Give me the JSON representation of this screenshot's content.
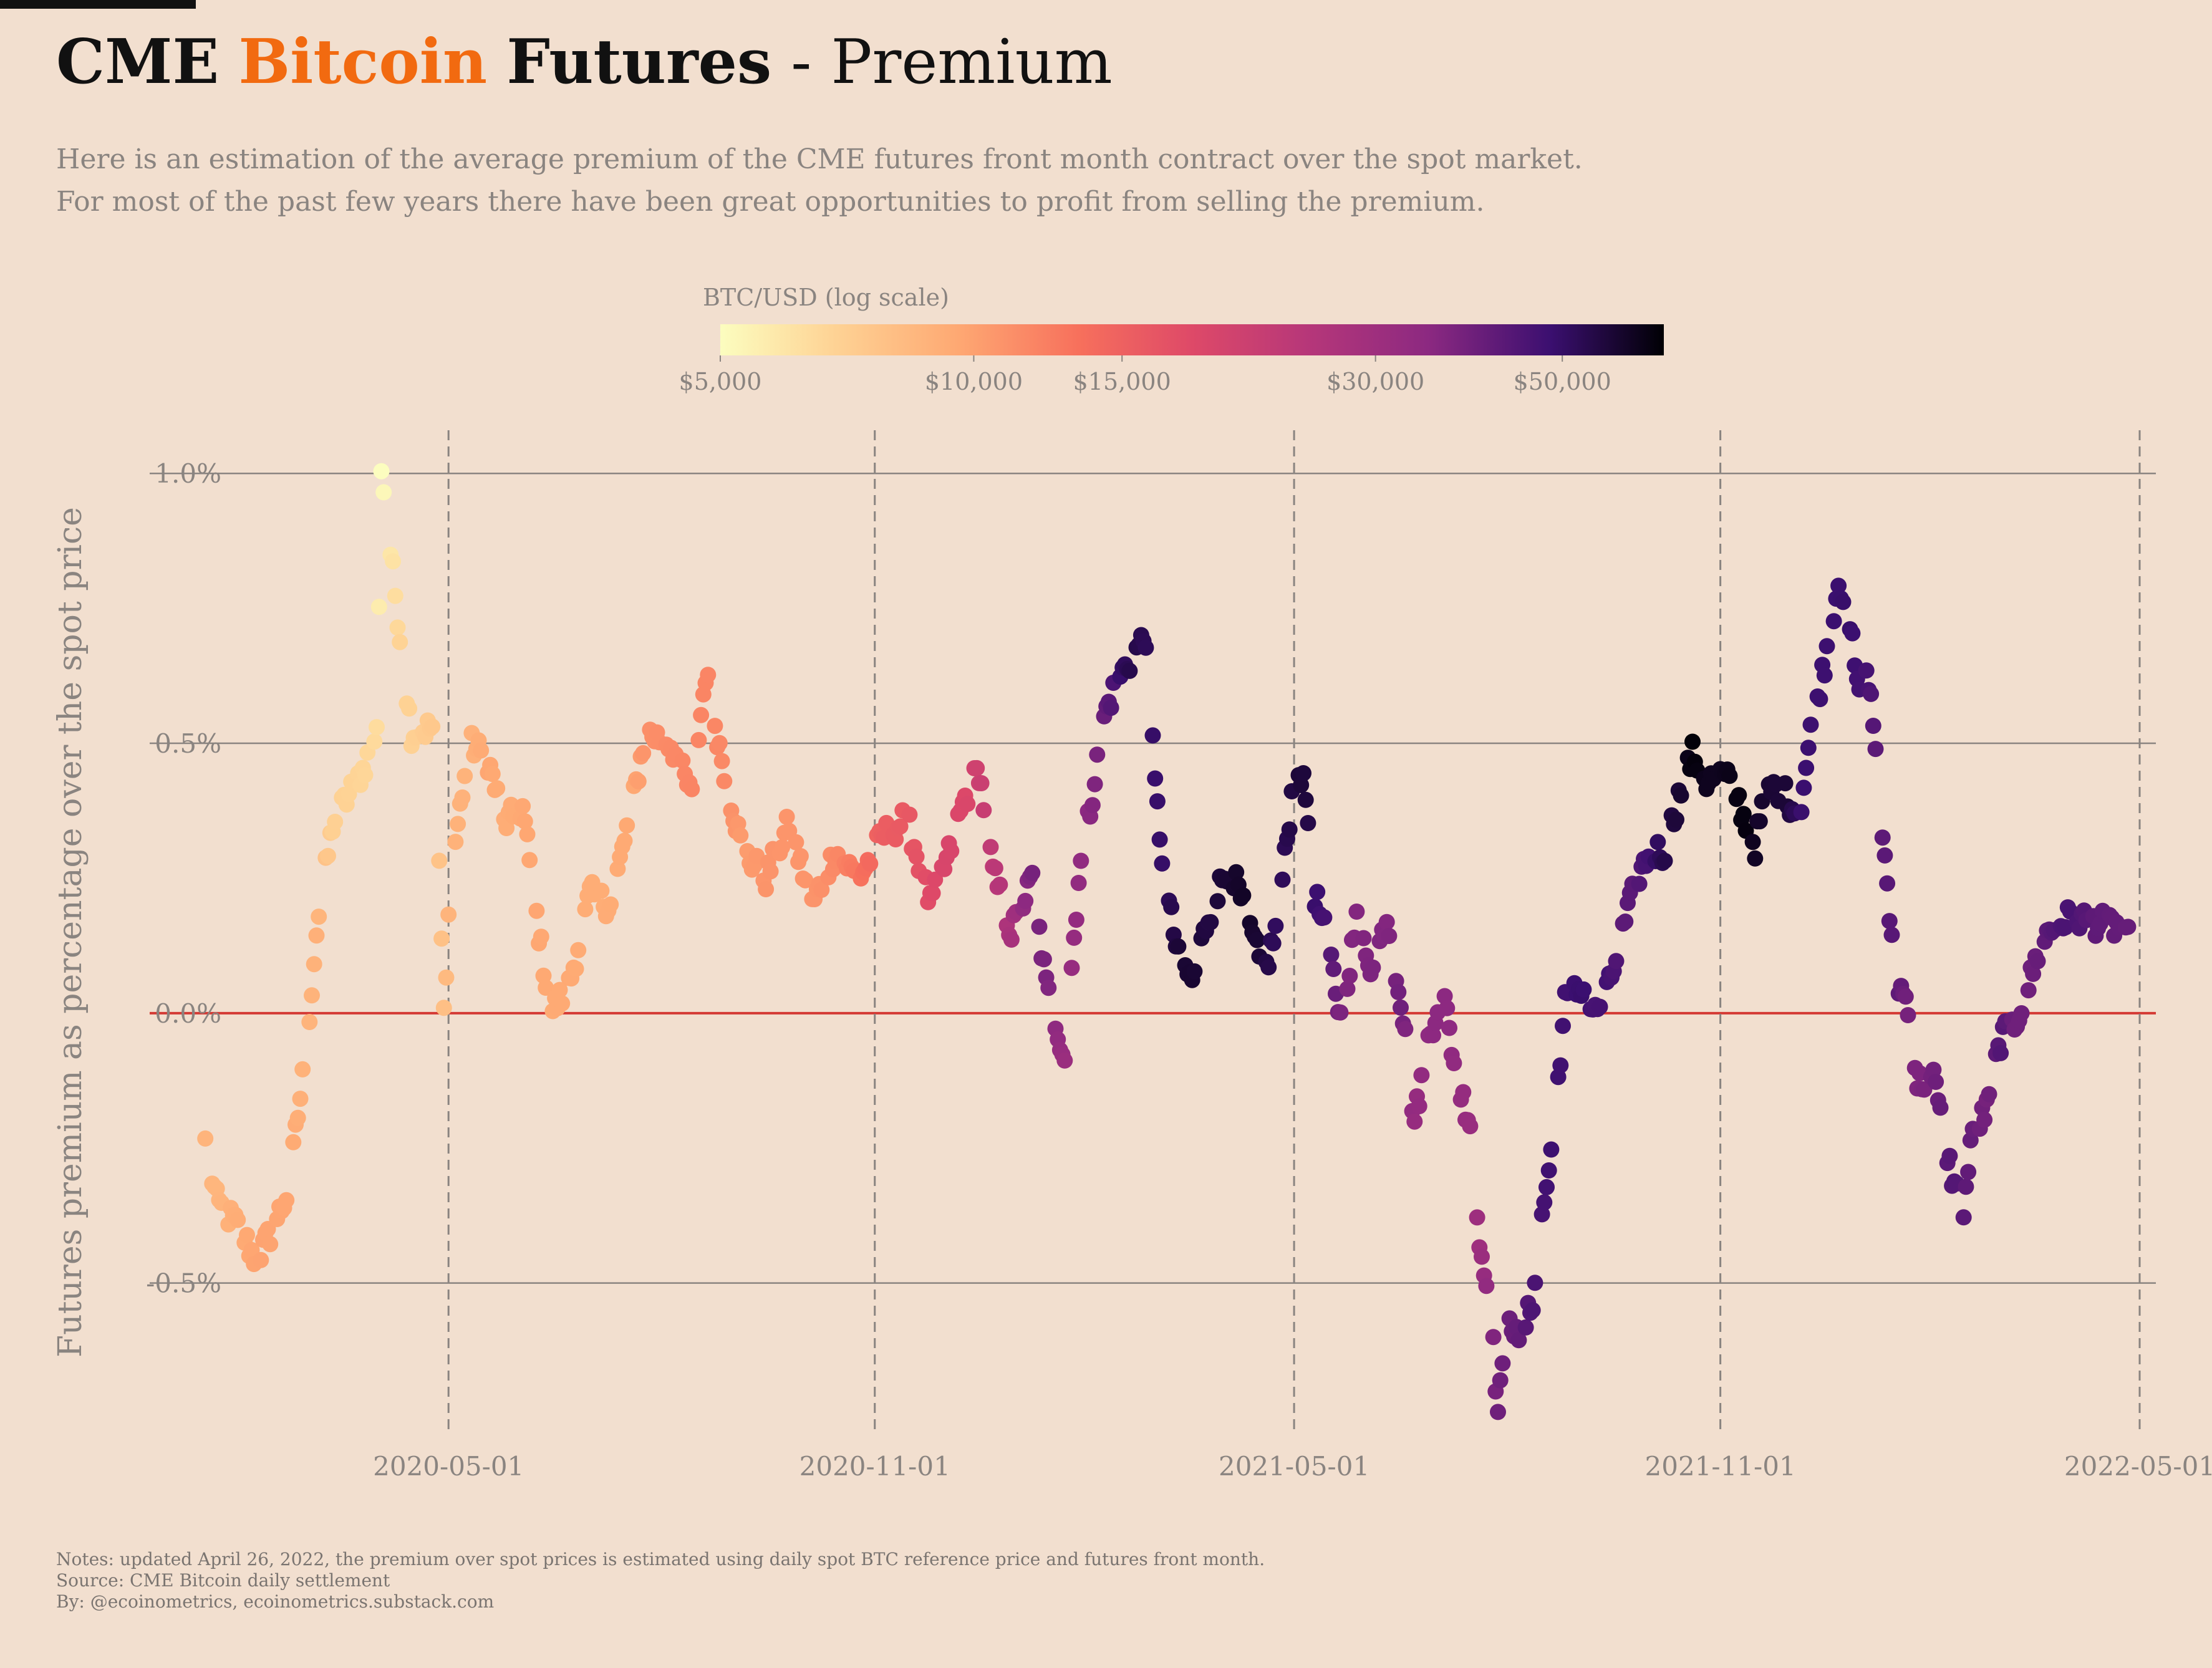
{
  "title": {
    "part1": "CME",
    "part2": "Bitcoin",
    "part3": "Futures",
    "part4": "- Premium"
  },
  "subtitle": {
    "line1": "Here is an estimation of the average premium of the CME futures front month contract over the spot market.",
    "line2": "For most of the past few years there have been great opportunities to profit from selling the premium."
  },
  "notes": {
    "line1": "Notes: updated April 26, 2022, the premium over spot prices is estimated using daily spot BTC reference price and futures front month.",
    "line2": "Source: CME Bitcoin daily settlement",
    "line3": "By: @ecoinometrics, ecoinometrics.substack.com"
  },
  "colors": {
    "background": "#f2dfcf",
    "brand_orange": "#f26a10",
    "zero_line": "#d43a34",
    "grid": "#8a8480"
  },
  "chart_data": {
    "type": "scatter",
    "ylabel": "Futures premium as percentage over the spot price",
    "y_unit": "percent",
    "ylim": [
      -0.78,
      1.08
    ],
    "yticks": [
      1.0,
      0.5,
      0.0,
      -0.5
    ],
    "ytick_labels": [
      "1.0%",
      "0.5%",
      "0.0%",
      "-0.5%"
    ],
    "xlim": [
      "2019-12-24",
      "2022-05-08"
    ],
    "xticks": [
      "2020-05-01",
      "2020-11-01",
      "2021-05-01",
      "2021-11-01",
      "2022-05-01"
    ],
    "colorbar": {
      "label": "BTC/USD (log scale)",
      "min": 5000,
      "max": 66000,
      "ticks": [
        5000,
        10000,
        15000,
        30000,
        50000
      ],
      "tick_labels": [
        "$5,000",
        "$10,000",
        "$15,000",
        "$30,000",
        "$50,000"
      ],
      "colormap": "magma (reversed)"
    },
    "anchors": [
      {
        "date": "2020-01-17",
        "premium": -0.24,
        "btc": 8700
      },
      {
        "date": "2020-01-22",
        "premium": -0.35,
        "btc": 8600
      },
      {
        "date": "2020-02-01",
        "premium": -0.4,
        "btc": 9300
      },
      {
        "date": "2020-02-08",
        "premium": -0.46,
        "btc": 9900
      },
      {
        "date": "2020-02-15",
        "premium": -0.4,
        "btc": 9800
      },
      {
        "date": "2020-02-22",
        "premium": -0.33,
        "btc": 9700
      },
      {
        "date": "2020-03-01",
        "premium": -0.05,
        "btc": 8600
      },
      {
        "date": "2020-03-05",
        "premium": 0.15,
        "btc": 9000
      },
      {
        "date": "2020-03-12",
        "premium": 0.35,
        "btc": 7000
      },
      {
        "date": "2020-03-25",
        "premium": 0.45,
        "btc": 6700
      },
      {
        "date": "2020-03-31",
        "premium": 0.52,
        "btc": 6400
      },
      {
        "date": "2020-04-02",
        "premium": 1.01,
        "btc": 5000
      },
      {
        "date": "2020-04-04",
        "premium": 0.93,
        "btc": 5500
      },
      {
        "date": "2020-04-10",
        "premium": 0.7,
        "btc": 6800
      },
      {
        "date": "2020-04-15",
        "premium": 0.52,
        "btc": 6900
      },
      {
        "date": "2020-04-25",
        "premium": 0.53,
        "btc": 7500
      },
      {
        "date": "2020-04-29",
        "premium": 0.0,
        "btc": 8000
      },
      {
        "date": "2020-05-01",
        "premium": 0.18,
        "btc": 8700
      },
      {
        "date": "2020-05-04",
        "premium": 0.32,
        "btc": 8900
      },
      {
        "date": "2020-05-10",
        "premium": 0.5,
        "btc": 8800
      },
      {
        "date": "2020-05-18",
        "premium": 0.47,
        "btc": 9700
      },
      {
        "date": "2020-05-25",
        "premium": 0.35,
        "btc": 9200
      },
      {
        "date": "2020-06-02",
        "premium": 0.38,
        "btc": 9600
      },
      {
        "date": "2020-06-08",
        "premium": 0.18,
        "btc": 9700
      },
      {
        "date": "2020-06-14",
        "premium": 0.0,
        "btc": 9400
      },
      {
        "date": "2020-06-22",
        "premium": 0.05,
        "btc": 9500
      },
      {
        "date": "2020-07-01",
        "premium": 0.22,
        "btc": 9200
      },
      {
        "date": "2020-07-10",
        "premium": 0.2,
        "btc": 9300
      },
      {
        "date": "2020-07-20",
        "premium": 0.4,
        "btc": 9600
      },
      {
        "date": "2020-07-25",
        "premium": 0.52,
        "btc": 11000
      },
      {
        "date": "2020-08-05",
        "premium": 0.5,
        "btc": 11500
      },
      {
        "date": "2020-08-14",
        "premium": 0.4,
        "btc": 11800
      },
      {
        "date": "2020-08-20",
        "premium": 0.63,
        "btc": 11800
      },
      {
        "date": "2020-08-28",
        "premium": 0.45,
        "btc": 11500
      },
      {
        "date": "2020-09-05",
        "premium": 0.3,
        "btc": 10200
      },
      {
        "date": "2020-09-15",
        "premium": 0.25,
        "btc": 10800
      },
      {
        "date": "2020-09-25",
        "premium": 0.35,
        "btc": 10700
      },
      {
        "date": "2020-10-05",
        "premium": 0.2,
        "btc": 10700
      },
      {
        "date": "2020-10-15",
        "premium": 0.3,
        "btc": 11500
      },
      {
        "date": "2020-10-25",
        "premium": 0.25,
        "btc": 13000
      },
      {
        "date": "2020-11-05",
        "premium": 0.33,
        "btc": 15500
      },
      {
        "date": "2020-11-15",
        "premium": 0.36,
        "btc": 16000
      },
      {
        "date": "2020-11-25",
        "premium": 0.2,
        "btc": 18000
      },
      {
        "date": "2020-12-02",
        "premium": 0.28,
        "btc": 19200
      },
      {
        "date": "2020-12-10",
        "premium": 0.4,
        "btc": 18500
      },
      {
        "date": "2020-12-16",
        "premium": 0.45,
        "btc": 21000
      },
      {
        "date": "2020-12-22",
        "premium": 0.26,
        "btc": 23500
      },
      {
        "date": "2020-12-30",
        "premium": 0.15,
        "btc": 28000
      },
      {
        "date": "2021-01-08",
        "premium": 0.25,
        "btc": 38000
      },
      {
        "date": "2021-01-14",
        "premium": 0.05,
        "btc": 37000
      },
      {
        "date": "2021-01-22",
        "premium": -0.08,
        "btc": 31000
      },
      {
        "date": "2021-01-28",
        "premium": 0.25,
        "btc": 33000
      },
      {
        "date": "2021-02-02",
        "premium": 0.38,
        "btc": 35000
      },
      {
        "date": "2021-02-08",
        "premium": 0.55,
        "btc": 40000
      },
      {
        "date": "2021-02-14",
        "premium": 0.62,
        "btc": 48000
      },
      {
        "date": "2021-02-20",
        "premium": 0.66,
        "btc": 55000
      },
      {
        "date": "2021-02-26",
        "premium": 0.7,
        "btc": 52000
      },
      {
        "date": "2021-03-02",
        "premium": 0.42,
        "btc": 49000
      },
      {
        "date": "2021-03-06",
        "premium": 0.25,
        "btc": 50000
      },
      {
        "date": "2021-03-12",
        "premium": 0.1,
        "btc": 57000
      },
      {
        "date": "2021-03-18",
        "premium": 0.06,
        "btc": 58000
      },
      {
        "date": "2021-03-25",
        "premium": 0.18,
        "btc": 55000
      },
      {
        "date": "2021-04-03",
        "premium": 0.28,
        "btc": 58000
      },
      {
        "date": "2021-04-10",
        "premium": 0.18,
        "btc": 60000
      },
      {
        "date": "2021-04-18",
        "premium": 0.07,
        "btc": 56000
      },
      {
        "date": "2021-04-24",
        "premium": 0.17,
        "btc": 50000
      },
      {
        "date": "2021-05-02",
        "premium": 0.48,
        "btc": 57000
      },
      {
        "date": "2021-05-06",
        "premium": 0.4,
        "btc": 56000
      },
      {
        "date": "2021-05-10",
        "premium": 0.22,
        "btc": 49000
      },
      {
        "date": "2021-05-16",
        "premium": 0.12,
        "btc": 45000
      },
      {
        "date": "2021-05-21",
        "premium": -0.01,
        "btc": 37000
      },
      {
        "date": "2021-05-28",
        "premium": 0.17,
        "btc": 36000
      },
      {
        "date": "2021-06-04",
        "premium": 0.08,
        "btc": 37000
      },
      {
        "date": "2021-06-10",
        "premium": 0.18,
        "btc": 36000
      },
      {
        "date": "2021-06-16",
        "premium": 0.03,
        "btc": 39000
      },
      {
        "date": "2021-06-22",
        "premium": -0.2,
        "btc": 32000
      },
      {
        "date": "2021-06-28",
        "premium": -0.05,
        "btc": 34000
      },
      {
        "date": "2021-07-04",
        "premium": 0.05,
        "btc": 35000
      },
      {
        "date": "2021-07-10",
        "premium": -0.12,
        "btc": 33000
      },
      {
        "date": "2021-07-16",
        "premium": -0.2,
        "btc": 31500
      },
      {
        "date": "2021-07-20",
        "premium": -0.43,
        "btc": 30000
      },
      {
        "date": "2021-07-24",
        "premium": -0.5,
        "btc": 34000
      },
      {
        "date": "2021-07-28",
        "premium": -0.74,
        "btc": 39000
      },
      {
        "date": "2021-08-02",
        "premium": -0.55,
        "btc": 39500
      },
      {
        "date": "2021-08-06",
        "premium": -0.62,
        "btc": 41000
      },
      {
        "date": "2021-08-12",
        "premium": -0.53,
        "btc": 45000
      },
      {
        "date": "2021-08-16",
        "premium": -0.38,
        "btc": 46000
      },
      {
        "date": "2021-08-20",
        "premium": -0.26,
        "btc": 48000
      },
      {
        "date": "2021-08-26",
        "premium": 0.02,
        "btc": 47000
      },
      {
        "date": "2021-09-02",
        "premium": 0.05,
        "btc": 49000
      },
      {
        "date": "2021-09-08",
        "premium": 0.0,
        "btc": 46000
      },
      {
        "date": "2021-09-14",
        "premium": 0.05,
        "btc": 47000
      },
      {
        "date": "2021-09-20",
        "premium": 0.15,
        "btc": 42000
      },
      {
        "date": "2021-09-26",
        "premium": 0.25,
        "btc": 43000
      },
      {
        "date": "2021-10-02",
        "premium": 0.3,
        "btc": 48000
      },
      {
        "date": "2021-10-08",
        "premium": 0.3,
        "btc": 54000
      },
      {
        "date": "2021-10-14",
        "premium": 0.4,
        "btc": 57000
      },
      {
        "date": "2021-10-20",
        "premium": 0.48,
        "btc": 65000
      },
      {
        "date": "2021-10-26",
        "premium": 0.43,
        "btc": 61000
      },
      {
        "date": "2021-11-01",
        "premium": 0.44,
        "btc": 61000
      },
      {
        "date": "2021-11-07",
        "premium": 0.42,
        "btc": 63000
      },
      {
        "date": "2021-11-12",
        "premium": 0.35,
        "btc": 64000
      },
      {
        "date": "2021-11-16",
        "premium": 0.31,
        "btc": 60000
      },
      {
        "date": "2021-11-20",
        "premium": 0.4,
        "btc": 58000
      },
      {
        "date": "2021-11-25",
        "premium": 0.42,
        "btc": 57000
      },
      {
        "date": "2021-11-30",
        "premium": 0.4,
        "btc": 57000
      },
      {
        "date": "2021-12-05",
        "premium": 0.36,
        "btc": 49000
      },
      {
        "date": "2021-12-10",
        "premium": 0.52,
        "btc": 48000
      },
      {
        "date": "2021-12-16",
        "premium": 0.65,
        "btc": 48000
      },
      {
        "date": "2021-12-22",
        "premium": 0.8,
        "btc": 48500
      },
      {
        "date": "2021-12-26",
        "premium": 0.76,
        "btc": 50000
      },
      {
        "date": "2021-12-30",
        "premium": 0.6,
        "btc": 47000
      },
      {
        "date": "2022-01-04",
        "premium": 0.62,
        "btc": 46000
      },
      {
        "date": "2022-01-08",
        "premium": 0.45,
        "btc": 41000
      },
      {
        "date": "2022-01-12",
        "premium": 0.22,
        "btc": 43000
      },
      {
        "date": "2022-01-16",
        "premium": 0.06,
        "btc": 43000
      },
      {
        "date": "2022-01-21",
        "premium": 0.02,
        "btc": 38000
      },
      {
        "date": "2022-01-25",
        "premium": -0.13,
        "btc": 36500
      },
      {
        "date": "2022-02-01",
        "premium": -0.12,
        "btc": 38500
      },
      {
        "date": "2022-02-06",
        "premium": -0.24,
        "btc": 42000
      },
      {
        "date": "2022-02-10",
        "premium": -0.32,
        "btc": 44000
      },
      {
        "date": "2022-02-14",
        "premium": -0.36,
        "btc": 42500
      },
      {
        "date": "2022-02-18",
        "premium": -0.22,
        "btc": 40000
      },
      {
        "date": "2022-02-24",
        "premium": -0.18,
        "btc": 38000
      },
      {
        "date": "2022-03-02",
        "premium": -0.05,
        "btc": 44000
      },
      {
        "date": "2022-03-08",
        "premium": -0.02,
        "btc": 39000
      },
      {
        "date": "2022-03-14",
        "premium": 0.05,
        "btc": 39000
      },
      {
        "date": "2022-03-20",
        "premium": 0.14,
        "btc": 41000
      },
      {
        "date": "2022-03-26",
        "premium": 0.16,
        "btc": 44500
      },
      {
        "date": "2022-04-02",
        "premium": 0.18,
        "btc": 46000
      },
      {
        "date": "2022-04-10",
        "premium": 0.17,
        "btc": 42000
      },
      {
        "date": "2022-04-20",
        "premium": 0.16,
        "btc": 41000
      },
      {
        "date": "2022-04-26",
        "premium": 0.16,
        "btc": 40500
      }
    ]
  }
}
